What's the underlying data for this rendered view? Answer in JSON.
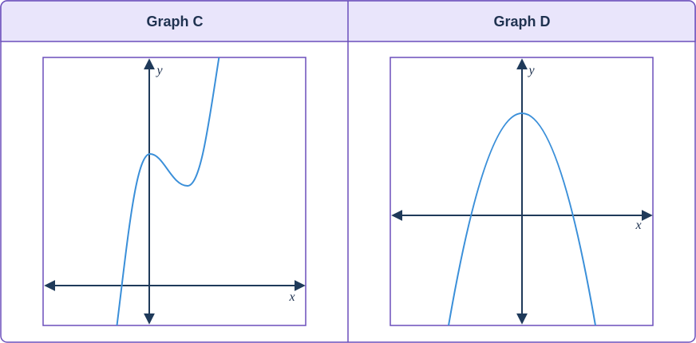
{
  "table": {
    "headers": [
      "Graph C",
      "Graph D"
    ]
  },
  "graphs": [
    {
      "x_label": "x",
      "y_label": "y"
    },
    {
      "x_label": "x",
      "y_label": "y"
    }
  ]
}
